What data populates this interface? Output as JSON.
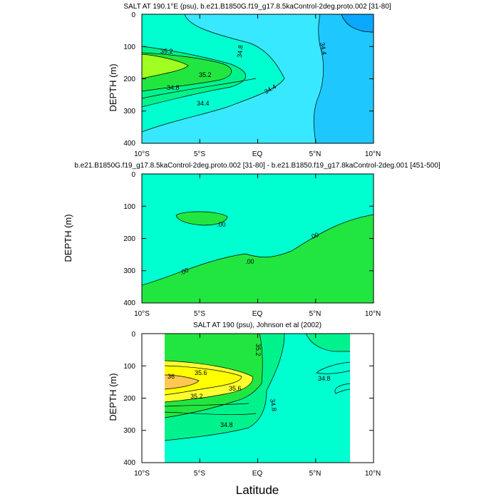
{
  "figure": {
    "xlabel": "Latitude"
  },
  "chart_data": [
    {
      "type": "heatmap",
      "title": "SALT AT 190.1°E (psu), b.e21.B1850G.f19_g17.8.5kaControl-2deg.proto.002 [31-80]",
      "xlabel": "",
      "ylabel": "DEPTH (m)",
      "xlim": [
        -10,
        10
      ],
      "ylim": [
        400,
        0
      ],
      "x_ticks": [
        "10°S",
        "5°S",
        "EQ",
        "5°N",
        "10°N"
      ],
      "y_ticks": [
        "0",
        "100",
        "200",
        "300",
        "400"
      ],
      "contour_labels": [
        "35.2",
        "35.2",
        "34.8",
        "34.8",
        "34.4",
        "34.4",
        "34.4"
      ],
      "colors": [
        "#1ec8ff",
        "#38e8ff",
        "#00ffd0",
        "#00f28c",
        "#22e640",
        "#a0ff20"
      ]
    },
    {
      "type": "heatmap",
      "title": "b.e21.B1850G.f19_g17.8.5kaControl-2deg.proto.002 [31-80] - b.e21.B1850.f19_g17.8kaControl-2deg.001 [451-500]",
      "xlabel": "",
      "ylabel": "DEPTH (m)",
      "xlim": [
        -10,
        10
      ],
      "ylim": [
        400,
        0
      ],
      "x_ticks": [
        "10°S",
        "5°S",
        "EQ",
        "5°N",
        "10°N"
      ],
      "y_ticks": [
        "0",
        "100",
        "200",
        "300",
        "400"
      ],
      "contour_labels": [
        ".00",
        ".00",
        ".00",
        ".00"
      ],
      "colors": [
        "#00ffd0",
        "#22e640"
      ]
    },
    {
      "type": "heatmap",
      "title": "SALT AT 190 (psu), Johnson et al (2002)",
      "xlabel": "",
      "ylabel": "DEPTH (m)",
      "xlim": [
        -10,
        10
      ],
      "ylim": [
        400,
        0
      ],
      "data_x_range": [
        -8,
        8
      ],
      "x_ticks": [
        "10°S",
        "5°S",
        "EQ",
        "5°N",
        "10°N"
      ],
      "y_ticks": [
        "0",
        "100",
        "200",
        "300",
        "400"
      ],
      "contour_labels": [
        "35.2",
        "35.6",
        "36",
        "35.6",
        "35.2",
        "34.8",
        "34.8",
        "34.8"
      ],
      "colors": [
        "#00ffd0",
        "#00f28c",
        "#22e640",
        "#ffff30",
        "#ffff00",
        "#ffc850"
      ]
    }
  ]
}
